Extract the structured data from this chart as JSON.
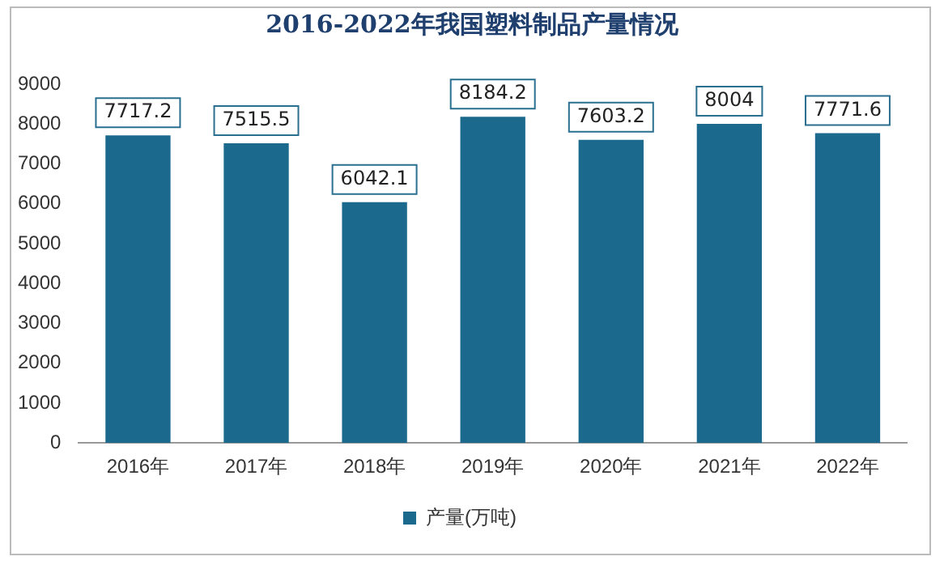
{
  "chart_data": {
    "type": "bar",
    "title": "2016-2022年我国塑料制品产量情况",
    "categories": [
      "2016年",
      "2017年",
      "2018年",
      "2019年",
      "2020年",
      "2021年",
      "2022年"
    ],
    "series": [
      {
        "name": "产量(万吨)",
        "color": "#1b6a8e",
        "values": [
          7717.2,
          7515.5,
          6042.1,
          8184.2,
          7603.2,
          8004,
          7771.6
        ]
      }
    ],
    "ylim": [
      0,
      9000
    ],
    "yticks": [
      0,
      1000,
      2000,
      3000,
      4000,
      5000,
      6000,
      7000,
      8000,
      9000
    ],
    "grid": false,
    "legend": "bottom",
    "data_labels": true
  }
}
